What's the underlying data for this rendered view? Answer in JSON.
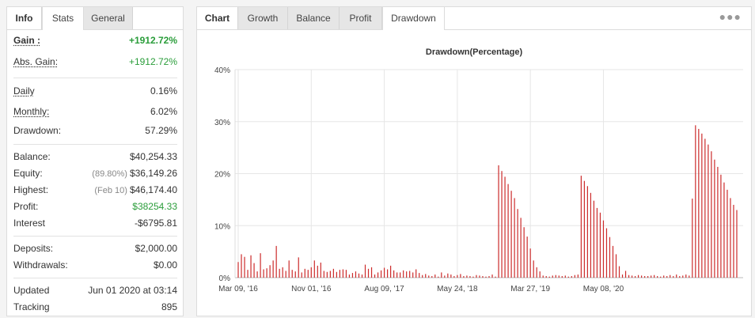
{
  "left_panel": {
    "tabs": [
      {
        "label": "Info"
      },
      {
        "label": "Stats"
      },
      {
        "label": "General"
      }
    ],
    "stats": {
      "gain": {
        "label": "Gain :",
        "value": "+1912.72%"
      },
      "abs_gain": {
        "label": "Abs. Gain:",
        "value": "+1912.72%"
      },
      "daily": {
        "label": "Daily",
        "value": "0.16%"
      },
      "monthly": {
        "label": "Monthly:",
        "value": "6.02%"
      },
      "drawdown": {
        "label": "Drawdown:",
        "value": "57.29%"
      },
      "balance": {
        "label": "Balance:",
        "value": "$40,254.33"
      },
      "equity": {
        "label": "Equity:",
        "note": "(89.80%)",
        "value": "$36,149.26"
      },
      "highest": {
        "label": "Highest:",
        "note": "(Feb 10)",
        "value": "$46,174.40"
      },
      "profit": {
        "label": "Profit:",
        "value": "$38254.33"
      },
      "interest": {
        "label": "Interest",
        "value": "-$6795.81"
      },
      "deposits": {
        "label": "Deposits:",
        "value": "$2,000.00"
      },
      "withdrawals": {
        "label": "Withdrawals:",
        "value": "$0.00"
      },
      "updated": {
        "label": "Updated",
        "value": "Jun 01 2020 at 03:14"
      },
      "tracking": {
        "label": "Tracking",
        "value": "895"
      }
    }
  },
  "right_panel": {
    "tabs": [
      {
        "label": "Chart"
      },
      {
        "label": "Growth"
      },
      {
        "label": "Balance"
      },
      {
        "label": "Profit"
      },
      {
        "label": "Drawdown"
      }
    ],
    "menu_icon": "more-dots-icon"
  },
  "colors": {
    "bar": "#cc2b2b",
    "grid": "#e6e6e6",
    "green": "#2a9d3a"
  },
  "chart_data": {
    "type": "bar",
    "title": "Drawdown(Percentage)",
    "ylim": [
      0,
      40
    ],
    "y_ticks": [
      0,
      10,
      20,
      30,
      40
    ],
    "y_tick_labels": [
      "0%",
      "10%",
      "20%",
      "30%",
      "40%"
    ],
    "x_tick_labels": [
      "Mar 09, '16",
      "Nov 01, '16",
      "Aug 09, '17",
      "May 24, '18",
      "Mar 27, '19",
      "May 08, '20"
    ],
    "x_tick_index": [
      0,
      23,
      46,
      69,
      92,
      115
    ],
    "values": [
      3.0,
      4.5,
      4.0,
      1.5,
      4.3,
      2.8,
      1.2,
      4.7,
      1.6,
      1.8,
      2.4,
      3.3,
      6.1,
      1.7,
      2.0,
      1.3,
      3.3,
      1.5,
      1.2,
      3.9,
      1.0,
      1.7,
      1.5,
      2.0,
      3.3,
      2.3,
      2.9,
      1.3,
      1.1,
      1.3,
      1.7,
      1.1,
      1.5,
      1.6,
      1.5,
      0.6,
      0.9,
      1.2,
      0.8,
      0.6,
      2.5,
      1.7,
      2.0,
      0.6,
      1.0,
      1.4,
      1.9,
      1.6,
      2.3,
      1.4,
      1.0,
      1.0,
      1.4,
      1.2,
      1.3,
      1.0,
      1.6,
      0.9,
      0.5,
      0.7,
      0.4,
      0.3,
      0.6,
      0.2,
      1.0,
      0.4,
      0.8,
      0.6,
      0.3,
      0.5,
      0.7,
      0.3,
      0.4,
      0.3,
      0.2,
      0.5,
      0.4,
      0.3,
      0.2,
      0.3,
      0.6,
      0.2,
      21.6,
      20.5,
      19.4,
      18.0,
      16.7,
      15.3,
      13.2,
      11.5,
      9.7,
      7.9,
      5.6,
      3.3,
      2.0,
      1.2,
      0.4,
      0.3,
      0.2,
      0.4,
      0.5,
      0.4,
      0.3,
      0.4,
      0.2,
      0.3,
      0.5,
      0.6,
      19.6,
      18.6,
      17.6,
      16.3,
      14.8,
      13.4,
      12.5,
      11.0,
      9.5,
      7.8,
      6.1,
      4.5,
      2.2,
      0.6,
      1.3,
      0.5,
      0.4,
      0.3,
      0.5,
      0.4,
      0.3,
      0.3,
      0.4,
      0.5,
      0.3,
      0.2,
      0.4,
      0.3,
      0.5,
      0.3,
      0.6,
      0.3,
      0.4,
      0.6,
      0.4,
      15.2,
      29.3,
      28.6,
      27.7,
      26.7,
      25.6,
      24.3,
      22.7,
      21.3,
      19.8,
      18.3,
      16.9,
      15.3,
      14.0,
      13.0
    ]
  }
}
